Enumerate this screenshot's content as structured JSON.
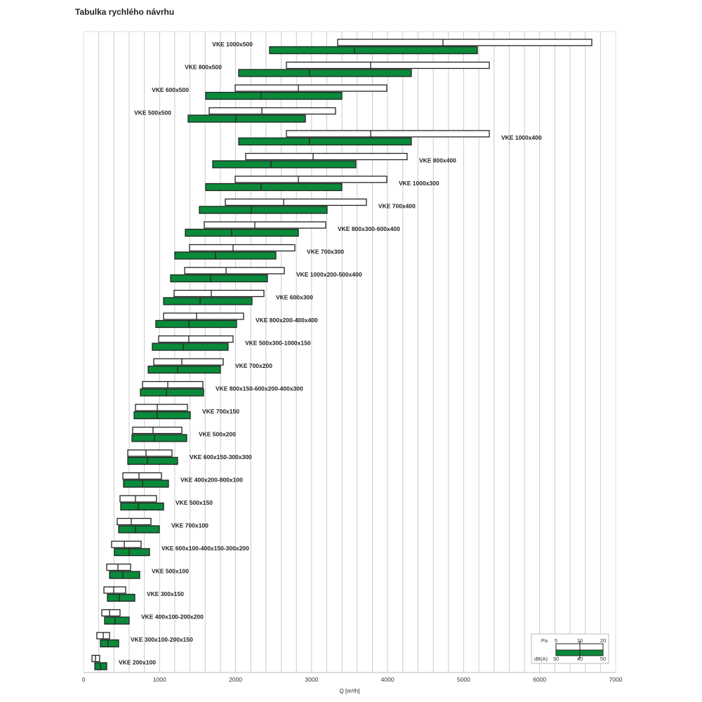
{
  "title": "Tabulka rychlého návrhu",
  "chart_data": {
    "type": "bar",
    "subtype": "floating-range-bars",
    "title": "Tabulka rychlého návrhu",
    "xlabel": "Q [m³/h]",
    "xlim": [
      0,
      7000
    ],
    "xticks": [
      0,
      1000,
      2000,
      3000,
      4000,
      5000,
      6000,
      7000
    ],
    "grid_step": 200,
    "colors": {
      "pressure": "#ffffff",
      "noise": "#0a8a3a",
      "outline": "#222222",
      "grid": "#cccccc"
    },
    "legend": {
      "placement": "bottom-right",
      "pressure_label": "Pa",
      "pressure_ticks": [
        "5",
        "10",
        "20"
      ],
      "noise_label": "dB(A)",
      "noise_ticks": [
        "30",
        "40",
        "50"
      ]
    },
    "rows": [
      {
        "label": "VKE 1000x500",
        "label_side": "left",
        "pa": [
          3343,
          4728,
          6686
        ],
        "db": [
          2447,
          3564,
          5181
        ]
      },
      {
        "label": "VKE 800x500",
        "label_side": "left",
        "pa": [
          2669,
          3777,
          5338
        ],
        "db": [
          2041,
          2973,
          4312
        ]
      },
      {
        "label": "VKE 600x500",
        "label_side": "left",
        "pa": [
          1995,
          2826,
          3989
        ],
        "db": [
          1607,
          2336,
          3398
        ]
      },
      {
        "label": "VKE 500x500",
        "label_side": "left",
        "pa": [
          1653,
          2346,
          3315
        ],
        "db": [
          1376,
          2004,
          2918
        ]
      },
      {
        "label": "VKE 1000x400",
        "label_side": "right",
        "pa": [
          2669,
          3777,
          5338
        ],
        "db": [
          2041,
          2973,
          4312
        ]
      },
      {
        "label": "VKE 800x400",
        "label_side": "right",
        "pa": [
          2133,
          3020,
          4257
        ],
        "db": [
          1699,
          2466,
          3583
        ]
      },
      {
        "label": "VKE 1000x300",
        "label_side": "right",
        "pa": [
          1995,
          2826,
          3989
        ],
        "db": [
          1607,
          2336,
          3398
        ]
      },
      {
        "label": "VKE 700x400",
        "label_side": "right",
        "pa": [
          1865,
          2632,
          3721
        ],
        "db": [
          1524,
          2207,
          3204
        ]
      },
      {
        "label": "VKE 800x300-600x400",
        "label_side": "right",
        "pa": [
          1588,
          2253,
          3186
        ],
        "db": [
          1339,
          1948,
          2826
        ]
      },
      {
        "label": "VKE 700x300",
        "label_side": "right",
        "pa": [
          1394,
          1967,
          2780
        ],
        "db": [
          1200,
          1736,
          2530
        ]
      },
      {
        "label": "VKE 1000x200-500x400",
        "label_side": "right",
        "pa": [
          1330,
          1875,
          2641
        ],
        "db": [
          1145,
          1671,
          2419
        ]
      },
      {
        "label": "VKE 600x300",
        "label_side": "right",
        "pa": [
          1191,
          1681,
          2373
        ],
        "db": [
          1053,
          1533,
          2216
        ]
      },
      {
        "label": "VKE 800x200-400x400",
        "label_side": "right",
        "pa": [
          1053,
          1487,
          2105
        ],
        "db": [
          951,
          1385,
          2013
        ]
      },
      {
        "label": "VKE 500x300-1000x150",
        "label_side": "right",
        "pa": [
          988,
          1385,
          1967
        ],
        "db": [
          905,
          1311,
          1902
        ]
      },
      {
        "label": "VKE 700x200",
        "label_side": "right",
        "pa": [
          923,
          1293,
          1838
        ],
        "db": [
          850,
          1237,
          1801
        ]
      },
      {
        "label": "VKE 800x150-600x200-400x300",
        "label_side": "right",
        "pa": [
          776,
          1108,
          1570
        ],
        "db": [
          748,
          1090,
          1579
        ]
      },
      {
        "label": "VKE 700x150",
        "label_side": "right",
        "pa": [
          683,
          970,
          1367
        ],
        "db": [
          665,
          970,
          1404
        ]
      },
      {
        "label": "VKE 500x200",
        "label_side": "right",
        "pa": [
          646,
          914,
          1293
        ],
        "db": [
          637,
          933,
          1357
        ]
      },
      {
        "label": "VKE 600x150-300x300",
        "label_side": "right",
        "pa": [
          582,
          822,
          1164
        ],
        "db": [
          582,
          840,
          1237
        ]
      },
      {
        "label": "VKE 400x200-800x100",
        "label_side": "right",
        "pa": [
          517,
          730,
          1025
        ],
        "db": [
          526,
          776,
          1117
        ]
      },
      {
        "label": "VKE 500x150",
        "label_side": "right",
        "pa": [
          480,
          683,
          960
        ],
        "db": [
          489,
          720,
          1053
        ]
      },
      {
        "label": "VKE 700x100",
        "label_side": "right",
        "pa": [
          443,
          628,
          887
        ],
        "db": [
          462,
          683,
          997
        ]
      },
      {
        "label": "VKE 600x100-400x150-300x200",
        "label_side": "right",
        "pa": [
          369,
          536,
          757
        ],
        "db": [
          406,
          600,
          868
        ]
      },
      {
        "label": "VKE 500x100",
        "label_side": "right",
        "pa": [
          305,
          452,
          619
        ],
        "db": [
          342,
          517,
          739
        ]
      },
      {
        "label": "VKE 300x150",
        "label_side": "right",
        "pa": [
          268,
          397,
          554
        ],
        "db": [
          314,
          471,
          674
        ]
      },
      {
        "label": "VKE 400x100-200x200",
        "label_side": "right",
        "pa": [
          240,
          342,
          480
        ],
        "db": [
          277,
          416,
          600
        ]
      },
      {
        "label": "VKE 300x100-200x150",
        "label_side": "right",
        "pa": [
          175,
          259,
          342
        ],
        "db": [
          222,
          323,
          462
        ]
      },
      {
        "label": "VKE 200x100",
        "label_side": "right",
        "pa": [
          111,
          157,
          212
        ],
        "db": [
          148,
          222,
          305
        ]
      }
    ]
  }
}
